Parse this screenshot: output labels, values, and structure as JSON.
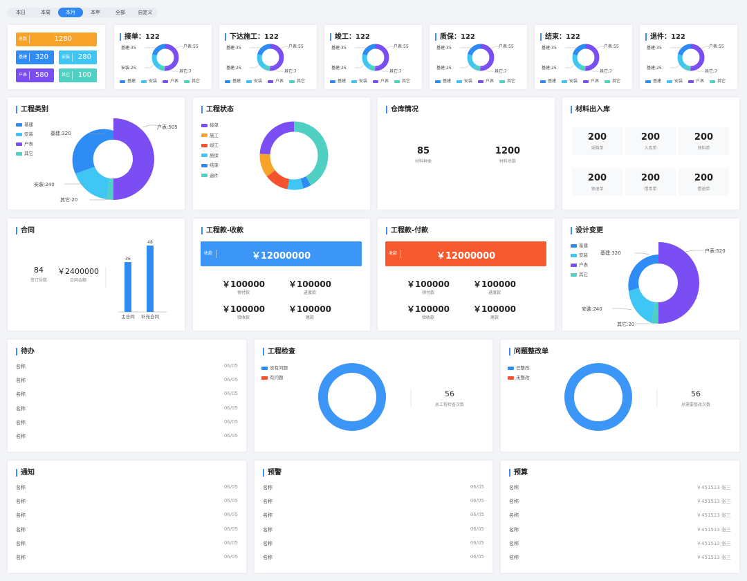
{
  "tabs": [
    "本日",
    "本周",
    "本月",
    "本年",
    "全部",
    "自定义"
  ],
  "active_tab": 2,
  "summary": {
    "total": {
      "label": "总数",
      "value": "1280",
      "color": "#f7a229"
    },
    "items": [
      {
        "label": "基建",
        "value": "320",
        "color": "#2f8cf5"
      },
      {
        "label": "安装",
        "value": "280",
        "color": "#3fc6f4"
      },
      {
        "label": "户表",
        "value": "580",
        "color": "#7a4ef2"
      },
      {
        "label": "其它",
        "value": "100",
        "color": "#4fd0c3"
      }
    ]
  },
  "stage_cards": [
    {
      "title": "接单：122",
      "labels": [
        "基建:35",
        "户表:55",
        "安装:25",
        "其它:7"
      ]
    },
    {
      "title": "下达施工：122",
      "labels": [
        "基建:35",
        "户表:55",
        "基建:25",
        "其它:7"
      ]
    },
    {
      "title": "竣工：122",
      "labels": [
        "基建:35",
        "户表:55",
        "基建:25",
        "其它:7"
      ]
    },
    {
      "title": "质保：122",
      "labels": [
        "基建:35",
        "户表:55",
        "基建:25",
        "其它:7"
      ]
    },
    {
      "title": "结束：122",
      "labels": [
        "基建:35",
        "户表:55",
        "基建:25",
        "其它:7"
      ]
    },
    {
      "title": "退件：122",
      "labels": [
        "基建:35",
        "户表:55",
        "基建:25",
        "其它:7"
      ]
    }
  ],
  "mini_legend": [
    {
      "name": "基建",
      "color": "#2f8cf5"
    },
    {
      "name": "安装",
      "color": "#3fc6f4"
    },
    {
      "name": "户表",
      "color": "#7a4ef2"
    },
    {
      "name": "其它",
      "color": "#4fd0c3"
    }
  ],
  "project_category": {
    "title": "工程类别",
    "legend": [
      "基建",
      "安装",
      "户表",
      "其它"
    ],
    "labels": [
      "基建:320",
      "户表:505",
      "安装:240",
      "其它:20"
    ]
  },
  "project_status": {
    "title": "工程状态",
    "legend": [
      {
        "name": "接单",
        "color": "#7a4ef2"
      },
      {
        "name": "施工",
        "color": "#f7a229"
      },
      {
        "name": "竣工",
        "color": "#f4532d"
      },
      {
        "name": "质保",
        "color": "#3fc6f4"
      },
      {
        "name": "结束",
        "color": "#2f8cf5"
      },
      {
        "name": "退件",
        "color": "#4fd0c3"
      }
    ]
  },
  "warehouse": {
    "title": "仓库情况",
    "items": [
      {
        "value": "85",
        "label": "材料种类"
      },
      {
        "value": "1200",
        "label": "材料总数"
      }
    ]
  },
  "material_io": {
    "title": "材料出入库",
    "items": [
      {
        "value": "200",
        "label": "采购单"
      },
      {
        "value": "200",
        "label": "入库单"
      },
      {
        "value": "200",
        "label": "领料单"
      },
      {
        "value": "200",
        "label": "领退单"
      },
      {
        "value": "200",
        "label": "借用单"
      },
      {
        "value": "200",
        "label": "借退单"
      }
    ]
  },
  "contract": {
    "title": "合同",
    "count": "84",
    "count_label": "签订份数",
    "amount": "￥2400000",
    "amount_label": "合同金额",
    "bars": [
      {
        "name": "主合同",
        "value": 36
      },
      {
        "name": "补充合同",
        "value": 48
      }
    ]
  },
  "receipt": {
    "title": "工程款-收款",
    "banner_label": "收款",
    "banner_value": "￥12000000",
    "items": [
      {
        "value": "￥100000",
        "label": "预付款"
      },
      {
        "value": "￥100000",
        "label": "进度款"
      },
      {
        "value": "￥100000",
        "label": "验收款"
      },
      {
        "value": "￥100000",
        "label": "尾款"
      }
    ]
  },
  "payment": {
    "title": "工程款-付款",
    "banner_label": "收款",
    "banner_value": "￥12000000",
    "items": [
      {
        "value": "￥100000",
        "label": "预付款"
      },
      {
        "value": "￥100000",
        "label": "进度款"
      },
      {
        "value": "￥100000",
        "label": "验收款"
      },
      {
        "value": "￥100000",
        "label": "尾款"
      }
    ]
  },
  "design_change": {
    "title": "设计变更",
    "legend": [
      "基建",
      "安装",
      "户表",
      "其它"
    ],
    "labels": [
      "基建:320",
      "户表:520",
      "安装:240",
      "其它:20"
    ]
  },
  "todo": {
    "title": "待办",
    "rows": [
      {
        "name": "名称",
        "date": "06/05"
      },
      {
        "name": "名称",
        "date": "06/05"
      },
      {
        "name": "名称",
        "date": "06/05"
      },
      {
        "name": "名称",
        "date": "06/05"
      },
      {
        "name": "名称",
        "date": "06/05"
      },
      {
        "name": "名称",
        "date": "06/05"
      }
    ]
  },
  "inspection": {
    "title": "工程检查",
    "legend": [
      {
        "name": "没有问题",
        "color": "#2f8cf5"
      },
      {
        "name": "有问题",
        "color": "#f4532d"
      }
    ],
    "count": "56",
    "count_label": "总工程检查次数"
  },
  "rectify": {
    "title": "问题整改单",
    "legend": [
      {
        "name": "已整改",
        "color": "#2f8cf5"
      },
      {
        "name": "未整改",
        "color": "#f4532d"
      }
    ],
    "count": "56",
    "count_label": "总需要整改次数"
  },
  "notice": {
    "title": "通知",
    "rows": [
      {
        "name": "名称",
        "date": "06/05"
      },
      {
        "name": "名称",
        "date": "06/05"
      },
      {
        "name": "名称",
        "date": "06/05"
      },
      {
        "name": "名称",
        "date": "06/05"
      },
      {
        "name": "名称",
        "date": "06/05"
      },
      {
        "name": "名称",
        "date": "06/05"
      }
    ]
  },
  "warning": {
    "title": "预警",
    "rows": [
      {
        "name": "名称",
        "date": "06/05"
      },
      {
        "name": "名称",
        "date": "06/05"
      },
      {
        "name": "名称",
        "date": "06/05"
      },
      {
        "name": "名称",
        "date": "06/05"
      },
      {
        "name": "名称",
        "date": "06/05"
      },
      {
        "name": "名称",
        "date": "06/05"
      }
    ]
  },
  "budget": {
    "title": "预算",
    "rows": [
      {
        "name": "名称",
        "value": "￥451513 张三"
      },
      {
        "name": "名称",
        "value": "￥451513 张三"
      },
      {
        "name": "名称",
        "value": "￥451513 张三"
      },
      {
        "name": "名称",
        "value": "￥451513 张三"
      },
      {
        "name": "名称",
        "value": "￥451513 张三"
      },
      {
        "name": "名称",
        "value": "￥451513 张三"
      }
    ]
  },
  "colors": {
    "blue": "#2f8cf5",
    "cyan": "#3fc6f4",
    "purple": "#7a4ef2",
    "teal": "#4fd0c3",
    "orange": "#f7a229",
    "red": "#f4532d"
  }
}
